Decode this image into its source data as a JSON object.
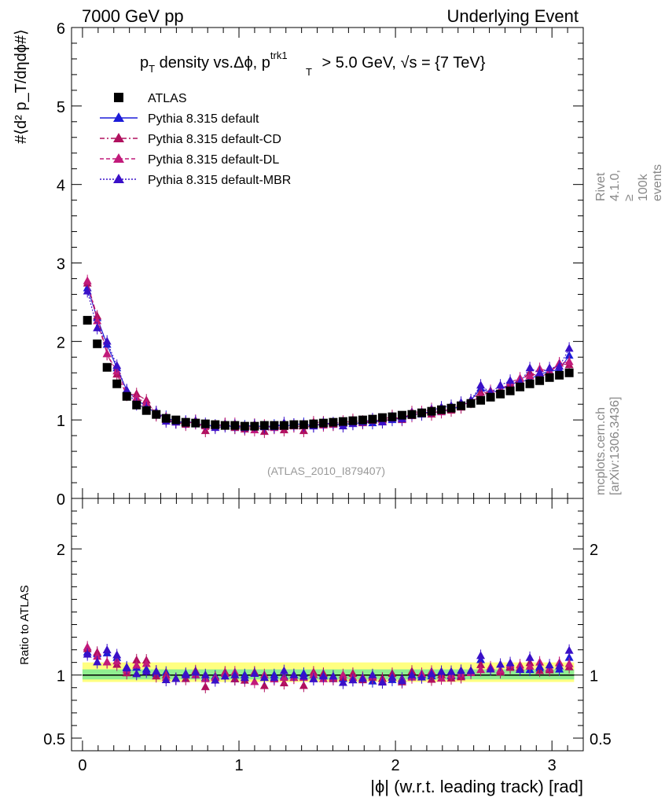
{
  "header": {
    "left": "7000 GeV pp",
    "right": "Underlying Event"
  },
  "side_text": {
    "top": "Rivet 4.1.0, ≥ 100k events",
    "bottom": "mcplots.cern.ch [arXiv:1306.3436]"
  },
  "watermark": "(ATLAS_2010_I879407)",
  "colors": {
    "atlas": "#000000",
    "default": "#1c1cd8",
    "cd": "#b0105e",
    "dl": "#c21a7a",
    "mbr": "#3a10c8",
    "band_inner": "#90ee90",
    "band_outer": "#ffff80",
    "ratio_line": "#2e8b57"
  },
  "chart_data": {
    "type": "scatter",
    "title_parts": {
      "pt": "p",
      "sub_t": "T",
      "mid": " density vs.Δϕ, p",
      "sup": "trk1",
      "sub_t2": "T",
      "cut": " > 5.0 GeV, ",
      "sqrt": "√",
      "s": "s = {7 TeV}"
    },
    "ylabel_main": "#⟨d² p_T/dηdϕ#⟩",
    "ylabel_ratio": "Ratio to ATLAS",
    "xlabel": "|ϕ| (w.r.t. leading track) [rad]",
    "xlim": [
      -0.07,
      3.2
    ],
    "ylim_main": [
      0,
      6
    ],
    "ylim_ratio": [
      0.4,
      2.4
    ],
    "x_ticks": [
      "0",
      "1",
      "2",
      "3"
    ],
    "y_ticks_main": [
      "0",
      "1",
      "2",
      "3",
      "4",
      "5",
      "6"
    ],
    "y_ticks_ratio": [
      "0.5",
      "1",
      "2"
    ],
    "legend": [
      {
        "key": "atlas",
        "label": "ATLAS",
        "marker": "square",
        "line": "none"
      },
      {
        "key": "default",
        "label": "Pythia 8.315 default",
        "marker": "triangle",
        "line": "solid"
      },
      {
        "key": "cd",
        "label": "Pythia 8.315 default-CD",
        "marker": "triangle",
        "line": "dashdot"
      },
      {
        "key": "dl",
        "label": "Pythia 8.315 default-DL",
        "marker": "triangle",
        "line": "dashed"
      },
      {
        "key": "mbr",
        "label": "Pythia 8.315 default-MBR",
        "marker": "triangle",
        "line": "dotted"
      }
    ],
    "x": [
      0.0314,
      0.0942,
      0.157,
      0.2199,
      0.2827,
      0.3456,
      0.4084,
      0.4712,
      0.5341,
      0.5969,
      0.6597,
      0.7226,
      0.7854,
      0.8482,
      0.9111,
      0.9739,
      1.0367,
      1.0996,
      1.1624,
      1.2252,
      1.2881,
      1.3509,
      1.4137,
      1.4766,
      1.5394,
      1.6022,
      1.6651,
      1.7279,
      1.7907,
      1.8535,
      1.9164,
      1.9792,
      2.042,
      2.1049,
      2.1677,
      2.2305,
      2.2934,
      2.3562,
      2.419,
      2.4819,
      2.5447,
      2.6075,
      2.6704,
      2.7332,
      2.796,
      2.8588,
      2.9217,
      2.9845,
      3.0473,
      3.1102
    ],
    "atlas": [
      2.27,
      1.97,
      1.67,
      1.46,
      1.3,
      1.19,
      1.12,
      1.07,
      1.02,
      1.0,
      0.97,
      0.96,
      0.95,
      0.94,
      0.93,
      0.93,
      0.92,
      0.92,
      0.93,
      0.93,
      0.93,
      0.94,
      0.94,
      0.95,
      0.96,
      0.97,
      0.98,
      0.99,
      1.0,
      1.01,
      1.03,
      1.04,
      1.06,
      1.07,
      1.09,
      1.11,
      1.13,
      1.15,
      1.18,
      1.21,
      1.25,
      1.29,
      1.33,
      1.37,
      1.42,
      1.46,
      1.5,
      1.54,
      1.57,
      1.6
    ],
    "series": [
      {
        "key": "default",
        "name": "Pythia 8.315 default",
        "values": [
          2.68,
          2.3,
          1.96,
          1.66,
          1.38,
          1.26,
          1.17,
          1.08,
          1.04,
          0.97,
          0.98,
          0.96,
          0.93,
          0.93,
          0.94,
          0.9,
          0.92,
          0.93,
          0.91,
          0.93,
          0.92,
          0.94,
          0.95,
          0.92,
          0.96,
          0.94,
          0.95,
          0.95,
          0.97,
          0.96,
          1.0,
          1.0,
          1.03,
          1.06,
          1.09,
          1.1,
          1.1,
          1.14,
          1.17,
          1.25,
          1.4,
          1.35,
          1.38,
          1.46,
          1.48,
          1.52,
          1.58,
          1.62,
          1.64,
          1.82
        ]
      },
      {
        "key": "cd",
        "name": "Pythia 8.315 default-CD",
        "values": [
          2.74,
          2.32,
          1.84,
          1.58,
          1.32,
          1.33,
          1.25,
          1.06,
          1.02,
          0.97,
          0.94,
          0.99,
          0.86,
          0.92,
          0.95,
          0.9,
          0.88,
          0.94,
          0.85,
          0.9,
          0.87,
          0.92,
          0.86,
          0.97,
          0.97,
          0.94,
          0.96,
          1.0,
          0.96,
          0.99,
          1.0,
          1.05,
          1.0,
          1.1,
          1.1,
          1.07,
          1.13,
          1.12,
          1.16,
          1.25,
          1.35,
          1.35,
          1.36,
          1.45,
          1.5,
          1.6,
          1.55,
          1.6,
          1.72,
          1.7
        ]
      },
      {
        "key": "dl",
        "name": "Pythia 8.315 default-DL",
        "values": [
          2.77,
          2.26,
          1.84,
          1.62,
          1.35,
          1.28,
          1.22,
          1.1,
          1.0,
          0.97,
          0.97,
          0.96,
          0.92,
          0.92,
          0.94,
          0.95,
          0.9,
          0.87,
          0.93,
          0.9,
          0.91,
          0.92,
          0.92,
          0.95,
          0.93,
          0.95,
          0.98,
          0.97,
          0.98,
          1.0,
          0.98,
          1.02,
          1.02,
          1.05,
          1.1,
          1.14,
          1.1,
          1.15,
          1.19,
          1.23,
          1.3,
          1.37,
          1.38,
          1.48,
          1.53,
          1.56,
          1.65,
          1.62,
          1.72,
          1.74
        ]
      },
      {
        "key": "mbr",
        "name": "Pythia 8.315 default-MBR",
        "values": [
          2.64,
          2.17,
          2.0,
          1.69,
          1.37,
          1.2,
          1.15,
          1.1,
          0.98,
          0.97,
          0.97,
          0.98,
          0.95,
          0.9,
          0.92,
          0.93,
          0.9,
          0.93,
          0.91,
          0.91,
          0.96,
          0.94,
          0.93,
          0.92,
          0.95,
          0.96,
          0.92,
          0.95,
          0.97,
          1.01,
          0.97,
          1.02,
          1.01,
          1.07,
          1.07,
          1.12,
          1.16,
          1.18,
          1.22,
          1.25,
          1.44,
          1.35,
          1.44,
          1.5,
          1.48,
          1.66,
          1.6,
          1.66,
          1.68,
          1.91
        ]
      }
    ]
  }
}
